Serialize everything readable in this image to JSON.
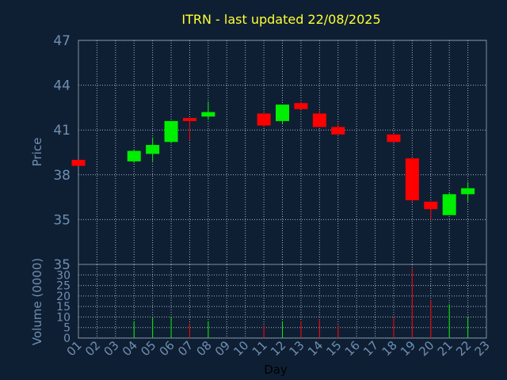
{
  "chart_data": {
    "type": "candlestick",
    "title": "ITRN - last updated 22/08/2025",
    "price_panel": {
      "ylabel": "Price",
      "ylim": [
        32,
        47
      ],
      "y_ticks": [
        47,
        44,
        41,
        38,
        35
      ],
      "grid": true
    },
    "volume_panel": {
      "ylabel": "Volume (0000)",
      "ylim": [
        0,
        35
      ],
      "y_ticks": [
        35,
        30,
        25,
        20,
        15,
        10,
        5,
        0
      ],
      "grid": true
    },
    "xlabel": "Day",
    "x_ticks": [
      "01",
      "02",
      "03",
      "04",
      "05",
      "06",
      "07",
      "08",
      "09",
      "10",
      "11",
      "12",
      "13",
      "14",
      "15",
      "16",
      "17",
      "18",
      "19",
      "20",
      "21",
      "22",
      "23"
    ],
    "candles": [
      {
        "day": "01",
        "open": 39.0,
        "close": 38.6,
        "high": 39.0,
        "low": 38.6,
        "volume": 0
      },
      {
        "day": "04",
        "open": 38.9,
        "close": 39.6,
        "high": 39.7,
        "low": 38.8,
        "volume": 8
      },
      {
        "day": "05",
        "open": 39.4,
        "close": 40.0,
        "high": 40.5,
        "low": 38.9,
        "volume": 10
      },
      {
        "day": "06",
        "open": 40.2,
        "close": 41.6,
        "high": 41.6,
        "low": 40.1,
        "volume": 10
      },
      {
        "day": "07",
        "open": 41.8,
        "close": 41.6,
        "high": 41.8,
        "low": 40.3,
        "volume": 7
      },
      {
        "day": "08",
        "open": 41.9,
        "close": 42.2,
        "high": 42.9,
        "low": 41.7,
        "volume": 8
      },
      {
        "day": "11",
        "open": 42.1,
        "close": 41.3,
        "high": 42.1,
        "low": 41.2,
        "volume": 6
      },
      {
        "day": "12",
        "open": 41.6,
        "close": 42.7,
        "high": 42.7,
        "low": 41.4,
        "volume": 8
      },
      {
        "day": "13",
        "open": 42.8,
        "close": 42.4,
        "high": 42.9,
        "low": 42.4,
        "volume": 8
      },
      {
        "day": "14",
        "open": 42.1,
        "close": 41.2,
        "high": 42.3,
        "low": 41.2,
        "volume": 9
      },
      {
        "day": "15",
        "open": 41.2,
        "close": 40.7,
        "high": 41.5,
        "low": 40.7,
        "volume": 6
      },
      {
        "day": "18",
        "open": 40.7,
        "close": 40.2,
        "high": 40.7,
        "low": 40.2,
        "volume": 10
      },
      {
        "day": "19",
        "open": 39.1,
        "close": 36.3,
        "high": 39.1,
        "low": 36.2,
        "volume": 33
      },
      {
        "day": "20",
        "open": 36.2,
        "close": 35.7,
        "high": 36.2,
        "low": 35.0,
        "volume": 18
      },
      {
        "day": "21",
        "open": 35.3,
        "close": 36.7,
        "high": 36.8,
        "low": 35.3,
        "volume": 16
      },
      {
        "day": "22",
        "open": 36.7,
        "close": 37.1,
        "high": 37.5,
        "low": 36.2,
        "volume": 10
      }
    ],
    "colors": {
      "background": "#0f1f33",
      "plot_area": "#0f1f33",
      "up": "#00ee00",
      "down": "#ff0000",
      "grid": "#9fb3c8",
      "title": "#ffff33",
      "tick_text": "#6f8fb2",
      "frame": "#7f8fa0"
    }
  }
}
